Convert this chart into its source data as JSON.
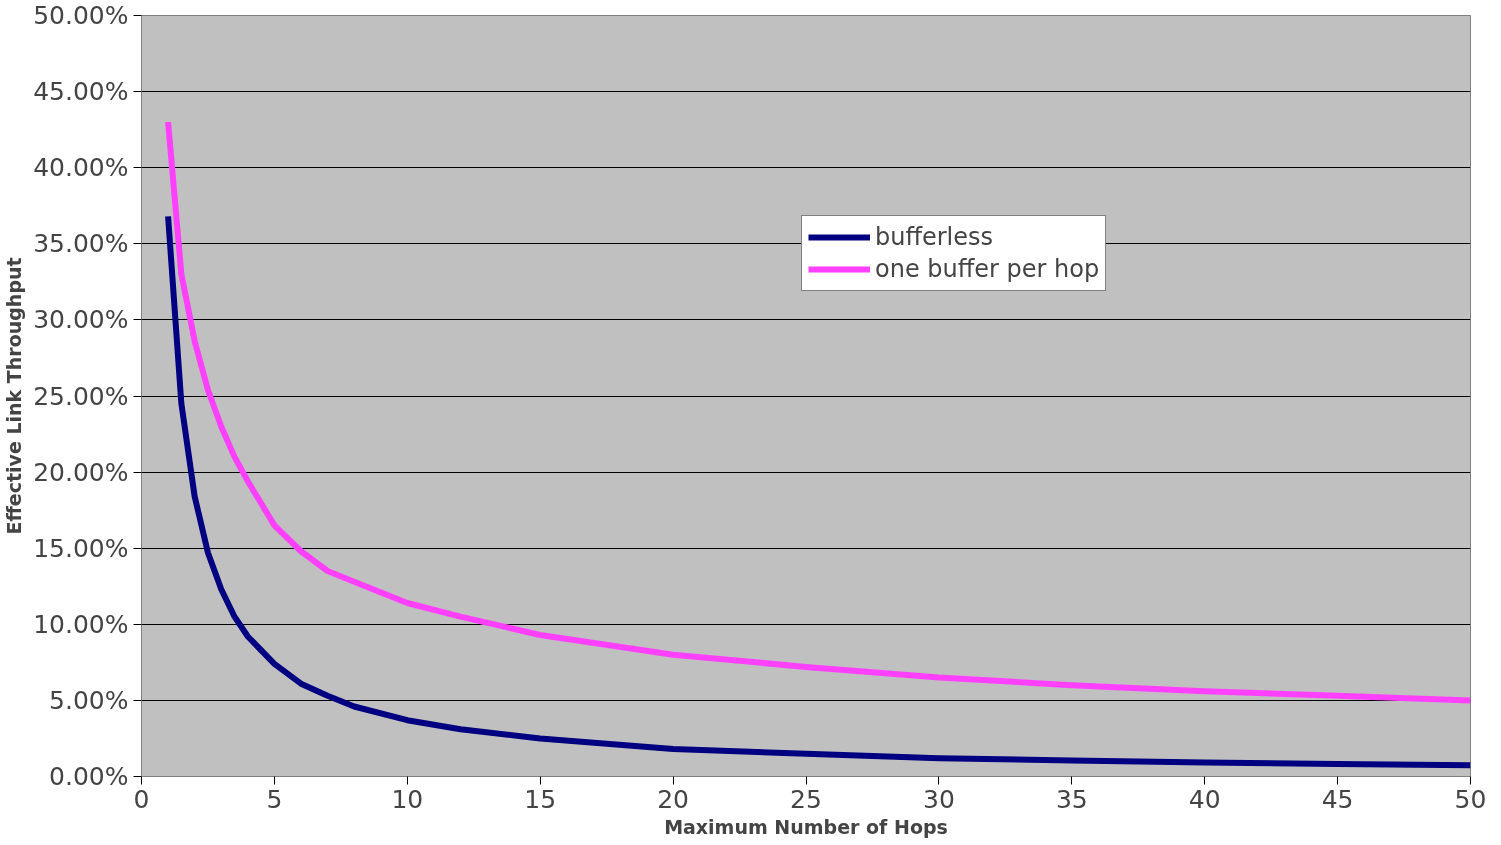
{
  "chart_data": {
    "type": "line",
    "xlabel": "Maximum Number of Hops",
    "ylabel": "Effective Link Throughput",
    "x": [
      1,
      1.5,
      2,
      2.5,
      3,
      3.5,
      4,
      5,
      6,
      7,
      8,
      10,
      12,
      15,
      20,
      25,
      30,
      35,
      40,
      45,
      50
    ],
    "series": [
      {
        "name": "bufferless",
        "color": "#000080",
        "values": [
          36.8,
          24.5,
          18.4,
          14.7,
          12.3,
          10.5,
          9.2,
          7.4,
          6.1,
          5.3,
          4.6,
          3.7,
          3.1,
          2.5,
          1.8,
          1.5,
          1.2,
          1.05,
          0.92,
          0.82,
          0.74
        ]
      },
      {
        "name": "one buffer per hop",
        "color": "#ff40ff",
        "values": [
          43,
          33,
          28.6,
          25.4,
          23,
          21,
          19.4,
          16.5,
          14.8,
          13.5,
          12.8,
          11.4,
          10.5,
          9.3,
          8,
          7.2,
          6.5,
          6,
          5.6,
          5.3,
          5
        ]
      }
    ],
    "xlim": [
      0,
      50
    ],
    "xticks": [
      0,
      5,
      10,
      15,
      20,
      25,
      30,
      35,
      40,
      45,
      50
    ],
    "ylim": [
      0,
      50
    ],
    "yticks": [
      {
        "value": 0,
        "label": "0.00%"
      },
      {
        "value": 5,
        "label": "5.00%"
      },
      {
        "value": 10,
        "label": "10.00%"
      },
      {
        "value": 15,
        "label": "15.00%"
      },
      {
        "value": 20,
        "label": "20.00%"
      },
      {
        "value": 25,
        "label": "25.00%"
      },
      {
        "value": 30,
        "label": "30.00%"
      },
      {
        "value": 35,
        "label": "35.00%"
      },
      {
        "value": 40,
        "label": "40.00%"
      },
      {
        "value": 45,
        "label": "45.00%"
      },
      {
        "value": 50,
        "label": "50.00%"
      }
    ],
    "grid": "y",
    "legend": "top right",
    "marker": "none",
    "line_style": "solid"
  }
}
